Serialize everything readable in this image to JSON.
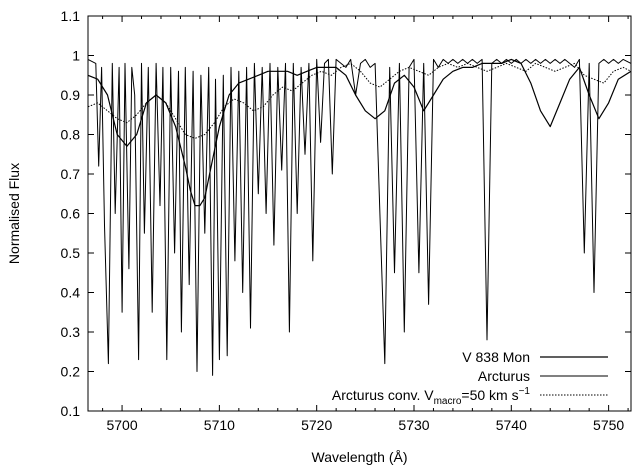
{
  "chart_data": {
    "type": "line",
    "title": "",
    "xlabel": "Wavelength (Å)",
    "ylabel": "Normalised Flux",
    "xlim": [
      5696.5,
      5752.3
    ],
    "ylim": [
      0.1,
      1.1
    ],
    "x_ticks": [
      5700,
      5710,
      5720,
      5730,
      5740,
      5750
    ],
    "x_tick_labels": [
      "5700",
      "5710",
      "5720",
      "5730",
      "5740",
      "5750"
    ],
    "y_ticks": [
      0.1,
      0.2,
      0.3,
      0.4,
      0.5,
      0.6,
      0.7,
      0.8,
      0.9,
      1.0,
      1.1
    ],
    "y_tick_labels": [
      "0.1",
      "0.2",
      "0.3",
      "0.4",
      "0.5",
      "0.6",
      "0.7",
      "0.8",
      "0.9",
      "1",
      "1.1"
    ],
    "grid": false,
    "legend_position": "bottom-right",
    "series": [
      {
        "name": "V 838 Mon",
        "style": "solid-thin",
        "x": [
          5696.5,
          5697.5,
          5698.5,
          5699.5,
          5700.5,
          5701.5,
          5702.5,
          5703.5,
          5704.5,
          5705.5,
          5706.5,
          5707.0,
          5707.5,
          5708.0,
          5708.5,
          5709.0,
          5709.5,
          5710.0,
          5710.5,
          5711.0,
          5712.0,
          5713.0,
          5714.0,
          5715.0,
          5716.0,
          5717.0,
          5718.0,
          5719.0,
          5720.0,
          5721.0,
          5722.0,
          5723.0,
          5724.0,
          5725.0,
          5726.0,
          5727.0,
          5728.0,
          5729.0,
          5730.0,
          5731.0,
          5732.0,
          5733.0,
          5734.0,
          5735.0,
          5736.0,
          5737.0,
          5738.0,
          5739.0,
          5740.0,
          5741.0,
          5742.0,
          5743.0,
          5744.0,
          5745.0,
          5746.0,
          5747.0,
          5748.0,
          5749.0,
          5750.0,
          5751.0,
          5752.3
        ],
        "y": [
          0.95,
          0.94,
          0.9,
          0.8,
          0.77,
          0.8,
          0.88,
          0.9,
          0.88,
          0.82,
          0.72,
          0.66,
          0.62,
          0.62,
          0.64,
          0.7,
          0.76,
          0.82,
          0.86,
          0.9,
          0.93,
          0.94,
          0.95,
          0.96,
          0.96,
          0.96,
          0.95,
          0.96,
          0.97,
          0.97,
          0.97,
          0.95,
          0.9,
          0.86,
          0.84,
          0.86,
          0.93,
          0.95,
          0.92,
          0.86,
          0.9,
          0.94,
          0.96,
          0.97,
          0.97,
          0.98,
          0.98,
          0.98,
          0.99,
          0.98,
          0.93,
          0.86,
          0.82,
          0.88,
          0.94,
          0.97,
          0.9,
          0.84,
          0.88,
          0.94,
          0.96
        ]
      },
      {
        "name": "Arcturus",
        "style": "solid-spiky",
        "x": [
          5696.5,
          5697.3,
          5697.6,
          5697.9,
          5698.2,
          5698.6,
          5699.0,
          5699.3,
          5699.7,
          5700.0,
          5700.3,
          5700.7,
          5701.0,
          5701.3,
          5701.7,
          5702.0,
          5702.3,
          5702.7,
          5703.1,
          5703.5,
          5703.9,
          5704.2,
          5704.6,
          5705.0,
          5705.4,
          5705.8,
          5706.1,
          5706.5,
          5706.9,
          5707.3,
          5707.7,
          5708.1,
          5708.5,
          5708.9,
          5709.3,
          5709.6,
          5710.0,
          5710.4,
          5710.8,
          5711.2,
          5711.6,
          5712.0,
          5712.4,
          5712.8,
          5713.2,
          5713.6,
          5714.0,
          5714.4,
          5714.8,
          5715.2,
          5715.6,
          5716.0,
          5716.4,
          5716.8,
          5717.2,
          5717.6,
          5718.0,
          5718.4,
          5718.8,
          5719.2,
          5719.6,
          5720.0,
          5720.4,
          5720.8,
          5721.2,
          5721.6,
          5722.0,
          5722.5,
          5723.0,
          5723.5,
          5724.0,
          5724.5,
          5725.0,
          5725.5,
          5726.0,
          5726.5,
          5727.0,
          5727.5,
          5728.0,
          5728.5,
          5729.0,
          5729.5,
          5730.0,
          5730.5,
          5731.0,
          5731.5,
          5732.0,
          5732.5,
          5733.0,
          5733.5,
          5734.0,
          5734.5,
          5735.0,
          5735.5,
          5736.0,
          5736.5,
          5737.0,
          5737.5,
          5738.0,
          5738.5,
          5739.0,
          5739.5,
          5740.0,
          5740.5,
          5741.0,
          5741.5,
          5742.0,
          5742.5,
          5743.0,
          5743.5,
          5744.0,
          5744.5,
          5745.0,
          5745.5,
          5746.0,
          5746.5,
          5747.0,
          5747.5,
          5748.0,
          5748.5,
          5749.0,
          5749.5,
          5750.0,
          5750.5,
          5751.0,
          5751.5,
          5752.3
        ],
        "y": [
          0.99,
          0.98,
          0.72,
          0.97,
          0.57,
          0.22,
          0.98,
          0.6,
          0.97,
          0.35,
          0.98,
          0.46,
          0.97,
          0.9,
          0.23,
          0.98,
          0.55,
          0.97,
          0.35,
          0.98,
          0.62,
          0.97,
          0.23,
          0.97,
          0.5,
          0.96,
          0.3,
          0.97,
          0.42,
          0.96,
          0.2,
          0.95,
          0.55,
          0.97,
          0.19,
          0.94,
          0.23,
          0.95,
          0.24,
          0.97,
          0.48,
          0.96,
          0.4,
          0.97,
          0.31,
          0.98,
          0.65,
          0.97,
          0.6,
          0.98,
          0.52,
          0.97,
          0.71,
          0.98,
          0.3,
          0.98,
          0.6,
          0.97,
          0.75,
          0.98,
          0.48,
          0.99,
          0.78,
          0.98,
          0.99,
          0.7,
          0.99,
          0.98,
          0.97,
          0.99,
          0.9,
          0.98,
          0.99,
          0.97,
          0.98,
          0.6,
          0.22,
          0.97,
          0.45,
          0.98,
          0.3,
          0.97,
          0.99,
          0.45,
          0.98,
          0.37,
          0.99,
          0.97,
          0.99,
          0.98,
          0.99,
          0.98,
          0.99,
          0.98,
          0.99,
          0.98,
          0.99,
          0.28,
          0.98,
          0.99,
          0.98,
          0.99,
          0.98,
          0.99,
          0.98,
          0.99,
          0.98,
          0.99,
          0.98,
          0.99,
          0.98,
          0.99,
          0.98,
          0.99,
          0.98,
          0.97,
          0.99,
          0.5,
          0.98,
          0.4,
          0.98,
          0.99,
          0.98,
          0.99,
          0.98,
          0.99,
          0.98
        ]
      },
      {
        "name": "Arcturus conv.",
        "style": "dotted",
        "x": [
          5696.5,
          5697.5,
          5698.5,
          5699.5,
          5700.5,
          5701.5,
          5702.5,
          5703.5,
          5704.5,
          5705.5,
          5706.5,
          5707.5,
          5708.5,
          5709.5,
          5710.5,
          5711.5,
          5712.5,
          5713.5,
          5714.5,
          5715.5,
          5716.5,
          5717.5,
          5718.5,
          5719.5,
          5720.5,
          5721.5,
          5722.5,
          5723.5,
          5724.5,
          5725.5,
          5726.5,
          5727.5,
          5728.5,
          5729.5,
          5730.5,
          5731.5,
          5732.5,
          5733.5,
          5734.5,
          5735.5,
          5736.5,
          5737.5,
          5738.5,
          5739.5,
          5740.5,
          5741.5,
          5742.5,
          5743.5,
          5744.5,
          5745.5,
          5746.5,
          5747.5,
          5748.5,
          5749.5,
          5750.5,
          5751.5,
          5752.3
        ],
        "y": [
          0.87,
          0.88,
          0.86,
          0.84,
          0.83,
          0.85,
          0.88,
          0.9,
          0.88,
          0.84,
          0.8,
          0.79,
          0.8,
          0.83,
          0.87,
          0.89,
          0.88,
          0.86,
          0.87,
          0.9,
          0.92,
          0.91,
          0.93,
          0.95,
          0.96,
          0.95,
          0.97,
          0.98,
          0.96,
          0.93,
          0.92,
          0.94,
          0.96,
          0.97,
          0.96,
          0.95,
          0.97,
          0.98,
          0.97,
          0.98,
          0.97,
          0.96,
          0.97,
          0.98,
          0.97,
          0.96,
          0.98,
          0.97,
          0.96,
          0.97,
          0.98,
          0.95,
          0.94,
          0.93,
          0.96,
          0.97,
          0.96
        ]
      }
    ]
  },
  "legend": {
    "entry1_label": "V 838 Mon",
    "entry2_label": "Arcturus",
    "entry3_prefix": "Arcturus conv. V",
    "entry3_sub": "macro",
    "entry3_mid": "=50 km s",
    "entry3_sup": "−1"
  }
}
